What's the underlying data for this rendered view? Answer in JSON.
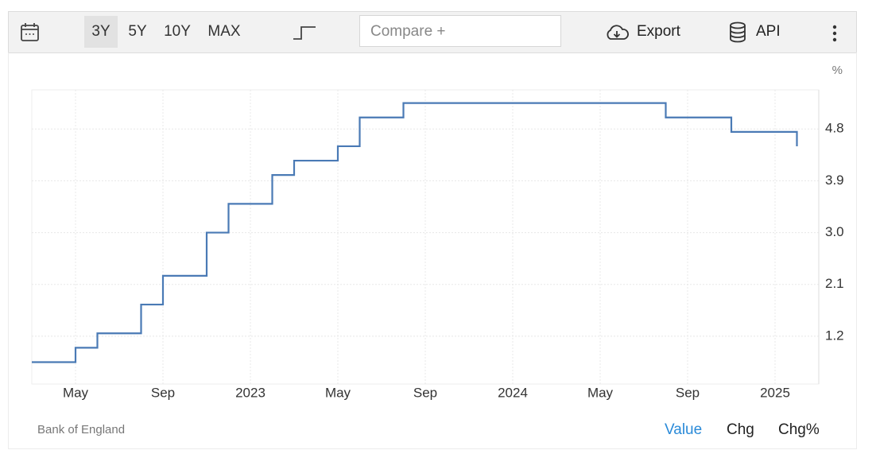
{
  "toolbar": {
    "ranges": [
      "3Y",
      "5Y",
      "10Y",
      "MAX"
    ],
    "active_range": "3Y",
    "compare_placeholder": "Compare +",
    "export": "Export",
    "api": "API"
  },
  "chart_data": {
    "type": "line",
    "step": true,
    "y_unit": "%",
    "color": "#4a7ab5",
    "grid": true,
    "x": [
      "2022-03",
      "2022-05",
      "2022-06",
      "2022-08",
      "2022-09",
      "2022-11",
      "2022-12",
      "2023-02",
      "2023-03",
      "2023-05",
      "2023-06",
      "2023-08",
      "2024-08",
      "2024-11",
      "2025-02"
    ],
    "values": [
      0.75,
      1,
      1.25,
      1.75,
      2.25,
      3,
      3.5,
      4,
      4.25,
      4.5,
      5,
      5.25,
      5,
      4.75,
      4.5
    ],
    "xlim": [
      "2022-03",
      "2025-03"
    ],
    "xticks": [
      {
        "value": "2022-05",
        "label": "May"
      },
      {
        "value": "2022-09",
        "label": "Sep"
      },
      {
        "value": "2023-01",
        "label": "2023"
      },
      {
        "value": "2023-05",
        "label": "May"
      },
      {
        "value": "2023-09",
        "label": "Sep"
      },
      {
        "value": "2024-01",
        "label": "2024"
      },
      {
        "value": "2024-05",
        "label": "May"
      },
      {
        "value": "2024-09",
        "label": "Sep"
      },
      {
        "value": "2025-01",
        "label": "2025"
      }
    ],
    "ylim": [
      0.37,
      5.48
    ],
    "yticks": [
      1.2,
      2.1,
      {
        "value": 3,
        "label": "3.0"
      },
      3.9,
      4.8
    ]
  },
  "footer": {
    "source": "Bank of England",
    "tabs": [
      "Value",
      "Chg",
      "Chg%"
    ],
    "active_tab": "Value"
  }
}
